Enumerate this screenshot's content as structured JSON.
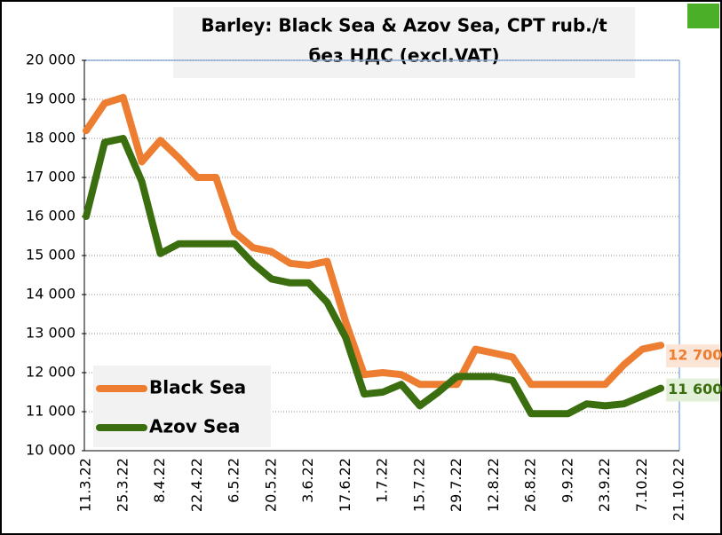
{
  "chart_data": {
    "type": "line",
    "title": "Barley: Black Sea & Azov Sea, CPT rub./t",
    "subtitle": "без НДС (excl.VAT)",
    "categories": [
      "11.3.22",
      null,
      "25.3.22",
      null,
      "8.4.22",
      null,
      "22.4.22",
      null,
      "6.5.22",
      null,
      "20.5.22",
      null,
      "3.6.22",
      null,
      "17.6.22",
      null,
      "1.7.22",
      null,
      "15.7.22",
      null,
      "29.7.22",
      null,
      "12.8.22",
      null,
      "26.8.22",
      null,
      "9.9.22",
      null,
      "23.9.22",
      null,
      "7.10.22",
      null,
      "21.10.22"
    ],
    "series": [
      {
        "name": "Black Sea",
        "color": "#ed7d31",
        "values": [
          18200,
          18900,
          19050,
          17400,
          17950,
          17500,
          17000,
          17000,
          15600,
          15200,
          15100,
          14800,
          14750,
          14850,
          13300,
          11950,
          12000,
          11950,
          11700,
          11700,
          11700,
          12600,
          12500,
          12400,
          11700,
          11700,
          11700,
          11700,
          11700,
          12200,
          12600,
          12700,
          null
        ],
        "value_labels": [
          null,
          null,
          null,
          null,
          null,
          null,
          null,
          null,
          null,
          null,
          null,
          null,
          null,
          null,
          null,
          null,
          null,
          null,
          null,
          null,
          null,
          null,
          null,
          null,
          null,
          null,
          null,
          null,
          null,
          null,
          null,
          "12 700",
          null
        ]
      },
      {
        "name": "Azov Sea",
        "color": "#3b6e0f",
        "values": [
          16000,
          17900,
          18000,
          16900,
          15050,
          15300,
          15300,
          15300,
          15300,
          14800,
          14400,
          14300,
          14300,
          13800,
          12900,
          11450,
          11500,
          11700,
          11150,
          11500,
          11900,
          11900,
          11900,
          11800,
          10950,
          10950,
          10950,
          11200,
          11150,
          11200,
          11400,
          11600,
          null
        ],
        "value_labels": [
          null,
          null,
          null,
          null,
          null,
          null,
          null,
          null,
          null,
          null,
          null,
          null,
          null,
          null,
          null,
          null,
          null,
          null,
          null,
          null,
          null,
          null,
          null,
          null,
          null,
          null,
          null,
          null,
          null,
          null,
          null,
          "11 600",
          null
        ]
      }
    ],
    "ylim": [
      10000,
      20000
    ],
    "yticks": [
      {
        "value": 10000,
        "label": "10 000"
      },
      {
        "value": 11000,
        "label": "11 000"
      },
      {
        "value": 12000,
        "label": "12 000"
      },
      {
        "value": 13000,
        "label": "13 000"
      },
      {
        "value": 14000,
        "label": "14 000"
      },
      {
        "value": 15000,
        "label": "15 000"
      },
      {
        "value": 16000,
        "label": "16 000"
      },
      {
        "value": 17000,
        "label": "17 000"
      },
      {
        "value": 18000,
        "label": "18 000"
      },
      {
        "value": 19000,
        "label": "19 000"
      },
      {
        "value": 20000,
        "label": "20 000"
      }
    ],
    "grid": true,
    "legend": "lower left"
  }
}
